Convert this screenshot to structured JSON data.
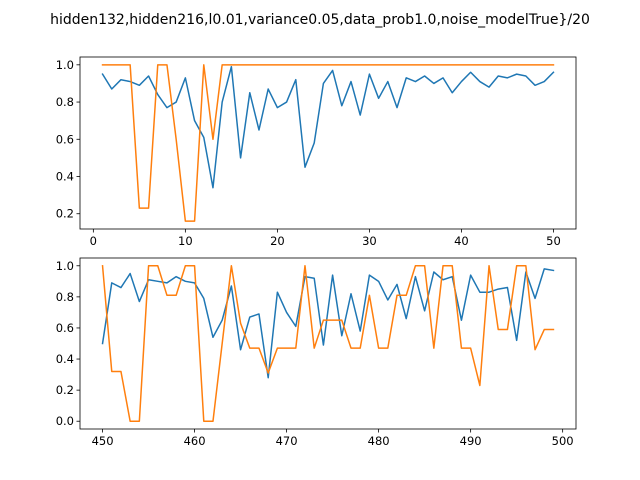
{
  "title": "hidden132,hidden216,l0.01,variance0.05,data_prob1.0,noise_modelTrue}/20",
  "colors": {
    "series1": "#1f77b4",
    "series2": "#ff7f0e",
    "axis": "#000000",
    "background": "#ffffff"
  },
  "chart_data": [
    {
      "type": "line",
      "xlim": [
        -1.45,
        52.45
      ],
      "ylim": [
        0.118,
        1.042
      ],
      "xticks": [
        0,
        10,
        20,
        30,
        40,
        50
      ],
      "yticks": [
        0.2,
        0.4,
        0.6,
        0.8,
        1.0
      ],
      "ytick_labels": [
        "0.2",
        "0.4",
        "0.6",
        "0.8",
        "1.0"
      ],
      "grid": false,
      "series": [
        {
          "color": "#1f77b4",
          "x": [
            1,
            2,
            3,
            4,
            5,
            6,
            7,
            8,
            9,
            10,
            11,
            12,
            13,
            14,
            15,
            16,
            17,
            18,
            19,
            20,
            21,
            22,
            23,
            24,
            25,
            26,
            27,
            28,
            29,
            30,
            31,
            32,
            33,
            34,
            35,
            36,
            37,
            38,
            39,
            40,
            41,
            42,
            43,
            44,
            45,
            46,
            47,
            48,
            49,
            50
          ],
          "values": [
            0.95,
            0.87,
            0.92,
            0.91,
            0.89,
            0.94,
            0.84,
            0.77,
            0.8,
            0.93,
            0.7,
            0.61,
            0.34,
            0.8,
            0.99,
            0.5,
            0.85,
            0.65,
            0.87,
            0.77,
            0.8,
            0.92,
            0.45,
            0.58,
            0.9,
            0.97,
            0.78,
            0.91,
            0.73,
            0.95,
            0.82,
            0.91,
            0.77,
            0.93,
            0.91,
            0.94,
            0.9,
            0.93,
            0.85,
            0.91,
            0.96,
            0.91,
            0.88,
            0.94,
            0.93,
            0.95,
            0.94,
            0.89,
            0.91,
            0.96
          ]
        },
        {
          "color": "#ff7f0e",
          "x": [
            1,
            2,
            3,
            4,
            5,
            6,
            7,
            8,
            9,
            10,
            11,
            12,
            13,
            14,
            15,
            16,
            17,
            18,
            19,
            20,
            21,
            22,
            23,
            24,
            25,
            26,
            27,
            28,
            29,
            30,
            31,
            32,
            33,
            34,
            35,
            36,
            37,
            38,
            39,
            40,
            41,
            42,
            43,
            44,
            45,
            46,
            47,
            48,
            49,
            50
          ],
          "values": [
            1.0,
            1.0,
            1.0,
            1.0,
            0.23,
            0.23,
            1.0,
            1.0,
            0.6,
            0.16,
            0.16,
            1.0,
            0.6,
            1.0,
            1.0,
            1.0,
            1.0,
            1.0,
            1.0,
            1.0,
            1.0,
            1.0,
            1.0,
            1.0,
            1.0,
            1.0,
            1.0,
            1.0,
            1.0,
            1.0,
            1.0,
            1.0,
            1.0,
            1.0,
            1.0,
            1.0,
            1.0,
            1.0,
            1.0,
            1.0,
            1.0,
            1.0,
            1.0,
            1.0,
            1.0,
            1.0,
            1.0,
            1.0,
            1.0,
            1.0
          ]
        }
      ]
    },
    {
      "type": "line",
      "xlim": [
        447.55,
        501.45
      ],
      "ylim": [
        -0.05,
        1.05
      ],
      "xticks": [
        450,
        460,
        470,
        480,
        490,
        500
      ],
      "yticks": [
        0.0,
        0.2,
        0.4,
        0.6,
        0.8,
        1.0
      ],
      "ytick_labels": [
        "0.0",
        "0.2",
        "0.4",
        "0.6",
        "0.8",
        "1.0"
      ],
      "grid": false,
      "series": [
        {
          "color": "#1f77b4",
          "x": [
            450,
            451,
            452,
            453,
            454,
            455,
            456,
            457,
            458,
            459,
            460,
            461,
            462,
            463,
            464,
            465,
            466,
            467,
            468,
            469,
            470,
            471,
            472,
            473,
            474,
            475,
            476,
            477,
            478,
            479,
            480,
            481,
            482,
            483,
            484,
            485,
            486,
            487,
            488,
            489,
            490,
            491,
            492,
            493,
            494,
            495,
            496,
            497,
            498,
            499
          ],
          "values": [
            0.5,
            0.89,
            0.86,
            0.95,
            0.77,
            0.91,
            0.9,
            0.89,
            0.93,
            0.9,
            0.89,
            0.79,
            0.54,
            0.65,
            0.87,
            0.46,
            0.67,
            0.69,
            0.28,
            0.83,
            0.7,
            0.61,
            0.93,
            0.92,
            0.49,
            0.94,
            0.55,
            0.82,
            0.58,
            0.94,
            0.9,
            0.78,
            0.88,
            0.66,
            0.93,
            0.71,
            0.96,
            0.91,
            0.93,
            0.65,
            0.94,
            0.83,
            0.83,
            0.85,
            0.86,
            0.52,
            0.96,
            0.79,
            0.98,
            0.97
          ]
        },
        {
          "color": "#ff7f0e",
          "x": [
            450,
            451,
            452,
            453,
            454,
            455,
            456,
            457,
            458,
            459,
            460,
            461,
            462,
            463,
            464,
            465,
            466,
            467,
            468,
            469,
            470,
            471,
            472,
            473,
            474,
            475,
            476,
            477,
            478,
            479,
            480,
            481,
            482,
            483,
            484,
            485,
            486,
            487,
            488,
            489,
            490,
            491,
            492,
            493,
            494,
            495,
            496,
            497,
            498,
            499
          ],
          "values": [
            1.0,
            0.32,
            0.32,
            0.0,
            0.0,
            1.0,
            1.0,
            0.81,
            0.81,
            1.0,
            1.0,
            0.0,
            0.0,
            0.5,
            1.0,
            0.63,
            0.47,
            0.47,
            0.31,
            0.47,
            0.47,
            0.47,
            1.0,
            0.47,
            0.65,
            0.65,
            0.65,
            0.47,
            0.47,
            0.81,
            0.47,
            0.47,
            0.81,
            0.81,
            1.0,
            1.0,
            0.47,
            1.0,
            1.0,
            0.47,
            0.47,
            0.23,
            1.0,
            0.59,
            0.59,
            1.0,
            1.0,
            0.46,
            0.59,
            0.59
          ]
        }
      ]
    }
  ]
}
